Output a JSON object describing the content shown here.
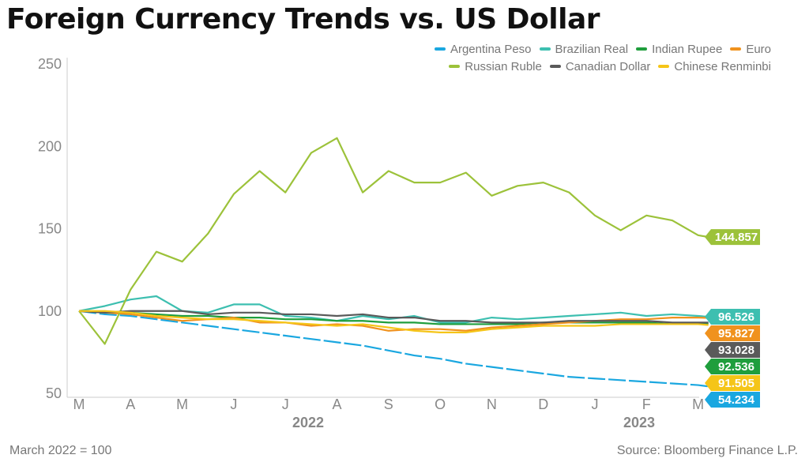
{
  "title": "Foreign Currency Trends vs. US Dollar",
  "footnote": "March 2022 = 100",
  "source": "Source: Bloomberg Finance L.P.",
  "chart_data": {
    "type": "line",
    "title": "Foreign Currency Trends vs. US Dollar",
    "ylim": [
      50,
      250
    ],
    "yticks": [
      50,
      100,
      150,
      200,
      250
    ],
    "month_ticks": [
      "M",
      "A",
      "M",
      "J",
      "J",
      "A",
      "S",
      "O",
      "N",
      "D",
      "J",
      "F",
      "M"
    ],
    "years": [
      "2022",
      "2023"
    ],
    "grid": false,
    "legend_position": "top-right",
    "x": [
      0,
      0.5,
      1,
      1.5,
      2,
      2.5,
      3,
      3.5,
      4,
      4.5,
      5,
      5.5,
      6,
      6.5,
      7,
      7.5,
      8,
      8.5,
      9,
      9.5,
      10,
      10.5,
      11,
      11.5,
      12,
      12.2
    ],
    "series": [
      {
        "name": "Argentina Peso",
        "color": "#1aa7e0",
        "dashed": true,
        "end_label": "54.234",
        "values": [
          100,
          98,
          97,
          95,
          93,
          91,
          89,
          87,
          85,
          83,
          81,
          79,
          76,
          73,
          71,
          68,
          66,
          64,
          62,
          60,
          59,
          58,
          57,
          56,
          55,
          54.2
        ]
      },
      {
        "name": "Brazilian Real",
        "color": "#3dbfb0",
        "end_label": "96.526",
        "values": [
          100,
          103,
          107,
          109,
          100,
          99,
          104,
          104,
          97,
          96,
          94,
          97,
          95,
          97,
          93,
          93,
          96,
          95,
          96,
          97,
          98,
          99,
          97,
          98,
          97,
          96.5
        ]
      },
      {
        "name": "Indian Rupee",
        "color": "#1f9e3d",
        "end_label": "92.536",
        "values": [
          100,
          99,
          99,
          98,
          97,
          97,
          96,
          96,
          95,
          95,
          94,
          94,
          93,
          93,
          92,
          92,
          92,
          92,
          93,
          93,
          93,
          93,
          93,
          92,
          92,
          92.5
        ]
      },
      {
        "name": "Euro",
        "color": "#f0921e",
        "end_label": "95.827",
        "values": [
          100,
          99,
          98,
          96,
          94,
          95,
          96,
          93,
          93,
          91,
          92,
          91,
          88,
          89,
          89,
          88,
          90,
          91,
          92,
          93,
          94,
          95,
          95,
          96,
          96,
          95.8
        ]
      },
      {
        "name": "Russian Ruble",
        "color": "#9cc23a",
        "end_label": "144.857",
        "values": [
          100,
          80,
          113,
          136,
          130,
          147,
          171,
          185,
          172,
          196,
          205,
          172,
          185,
          178,
          178,
          184,
          170,
          176,
          178,
          172,
          158,
          149,
          158,
          155,
          146,
          144.9
        ]
      },
      {
        "name": "Canadian Dollar",
        "color": "#5a5a5a",
        "end_label": "93.028",
        "values": [
          100,
          99,
          100,
          100,
          100,
          98,
          99,
          99,
          98,
          98,
          97,
          98,
          96,
          96,
          94,
          94,
          93,
          93,
          93,
          94,
          94,
          94,
          94,
          93,
          93,
          93.0
        ]
      },
      {
        "name": "Chinese Renminbi",
        "color": "#f5c518",
        "end_label": "91.505",
        "values": [
          100,
          100,
          99,
          97,
          96,
          95,
          95,
          94,
          93,
          92,
          91,
          92,
          90,
          88,
          87,
          87,
          89,
          90,
          91,
          91,
          91,
          92,
          92,
          92,
          92,
          91.5
        ]
      }
    ]
  }
}
